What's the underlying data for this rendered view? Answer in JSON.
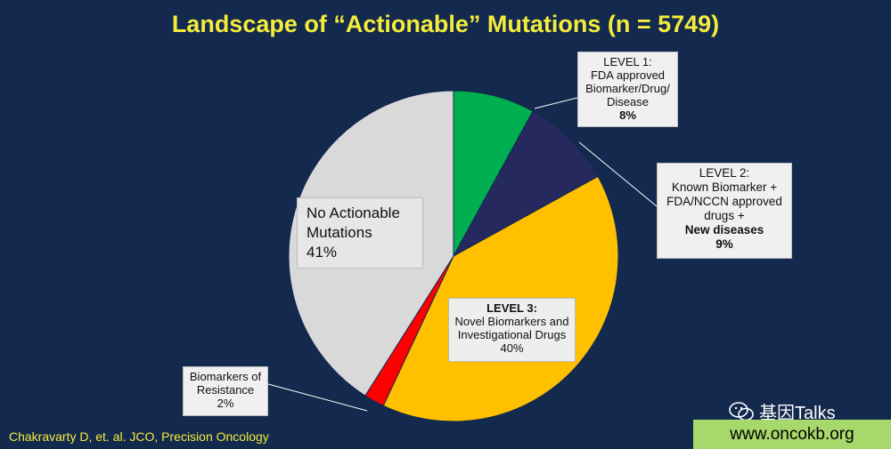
{
  "chart_data": {
    "type": "pie",
    "title": "Landscape of “Actionable” Mutations (n = 5749)",
    "slices": [
      {
        "label": "LEVEL 1: FDA approved Biomarker/Drug/ Disease",
        "value": 8,
        "color": "#00b050"
      },
      {
        "label": "LEVEL 2: Known Biomarker + FDA/NCCN approved drugs + New diseases",
        "value": 9,
        "color": "#26295e"
      },
      {
        "label": "LEVEL 3: Novel Biomarkers and Investigational Drugs",
        "value": 40,
        "color": "#ffc000"
      },
      {
        "label": "Biomarkers of Resistance",
        "value": 2,
        "color": "#ff0000"
      },
      {
        "label": "No Actionable Mutations",
        "value": 41,
        "color": "#d9d9d9"
      }
    ]
  },
  "labels": {
    "none": {
      "line1": "No Actionable",
      "line2": "Mutations",
      "pct": "41%"
    },
    "l1": {
      "line1": "LEVEL 1:",
      "line2": "FDA approved",
      "line3": "Biomarker/Drug/",
      "line4": "Disease",
      "pct": "8%"
    },
    "l2": {
      "line1": "LEVEL 2:",
      "line2": "Known Biomarker +",
      "line3": "FDA/NCCN approved",
      "line4": "drugs +",
      "line5": "New diseases",
      "pct": "9%"
    },
    "l3": {
      "line1": "LEVEL 3:",
      "line2": "Novel Biomarkers and",
      "line3": "Investigational Drugs",
      "pct": "40%"
    },
    "res": {
      "line1": "Biomarkers of",
      "line2": "Resistance",
      "pct": "2%"
    }
  },
  "citation": "Chakravarty D, et. al.  JCO, Precision Oncology",
  "watermark": {
    "text": "基因Talks",
    "icon": "wechat-icon"
  },
  "site": "www.oncokb.org",
  "colors": {
    "background": "#13294d",
    "title": "#f4ec3c",
    "site_bar": "#a6d86b"
  }
}
